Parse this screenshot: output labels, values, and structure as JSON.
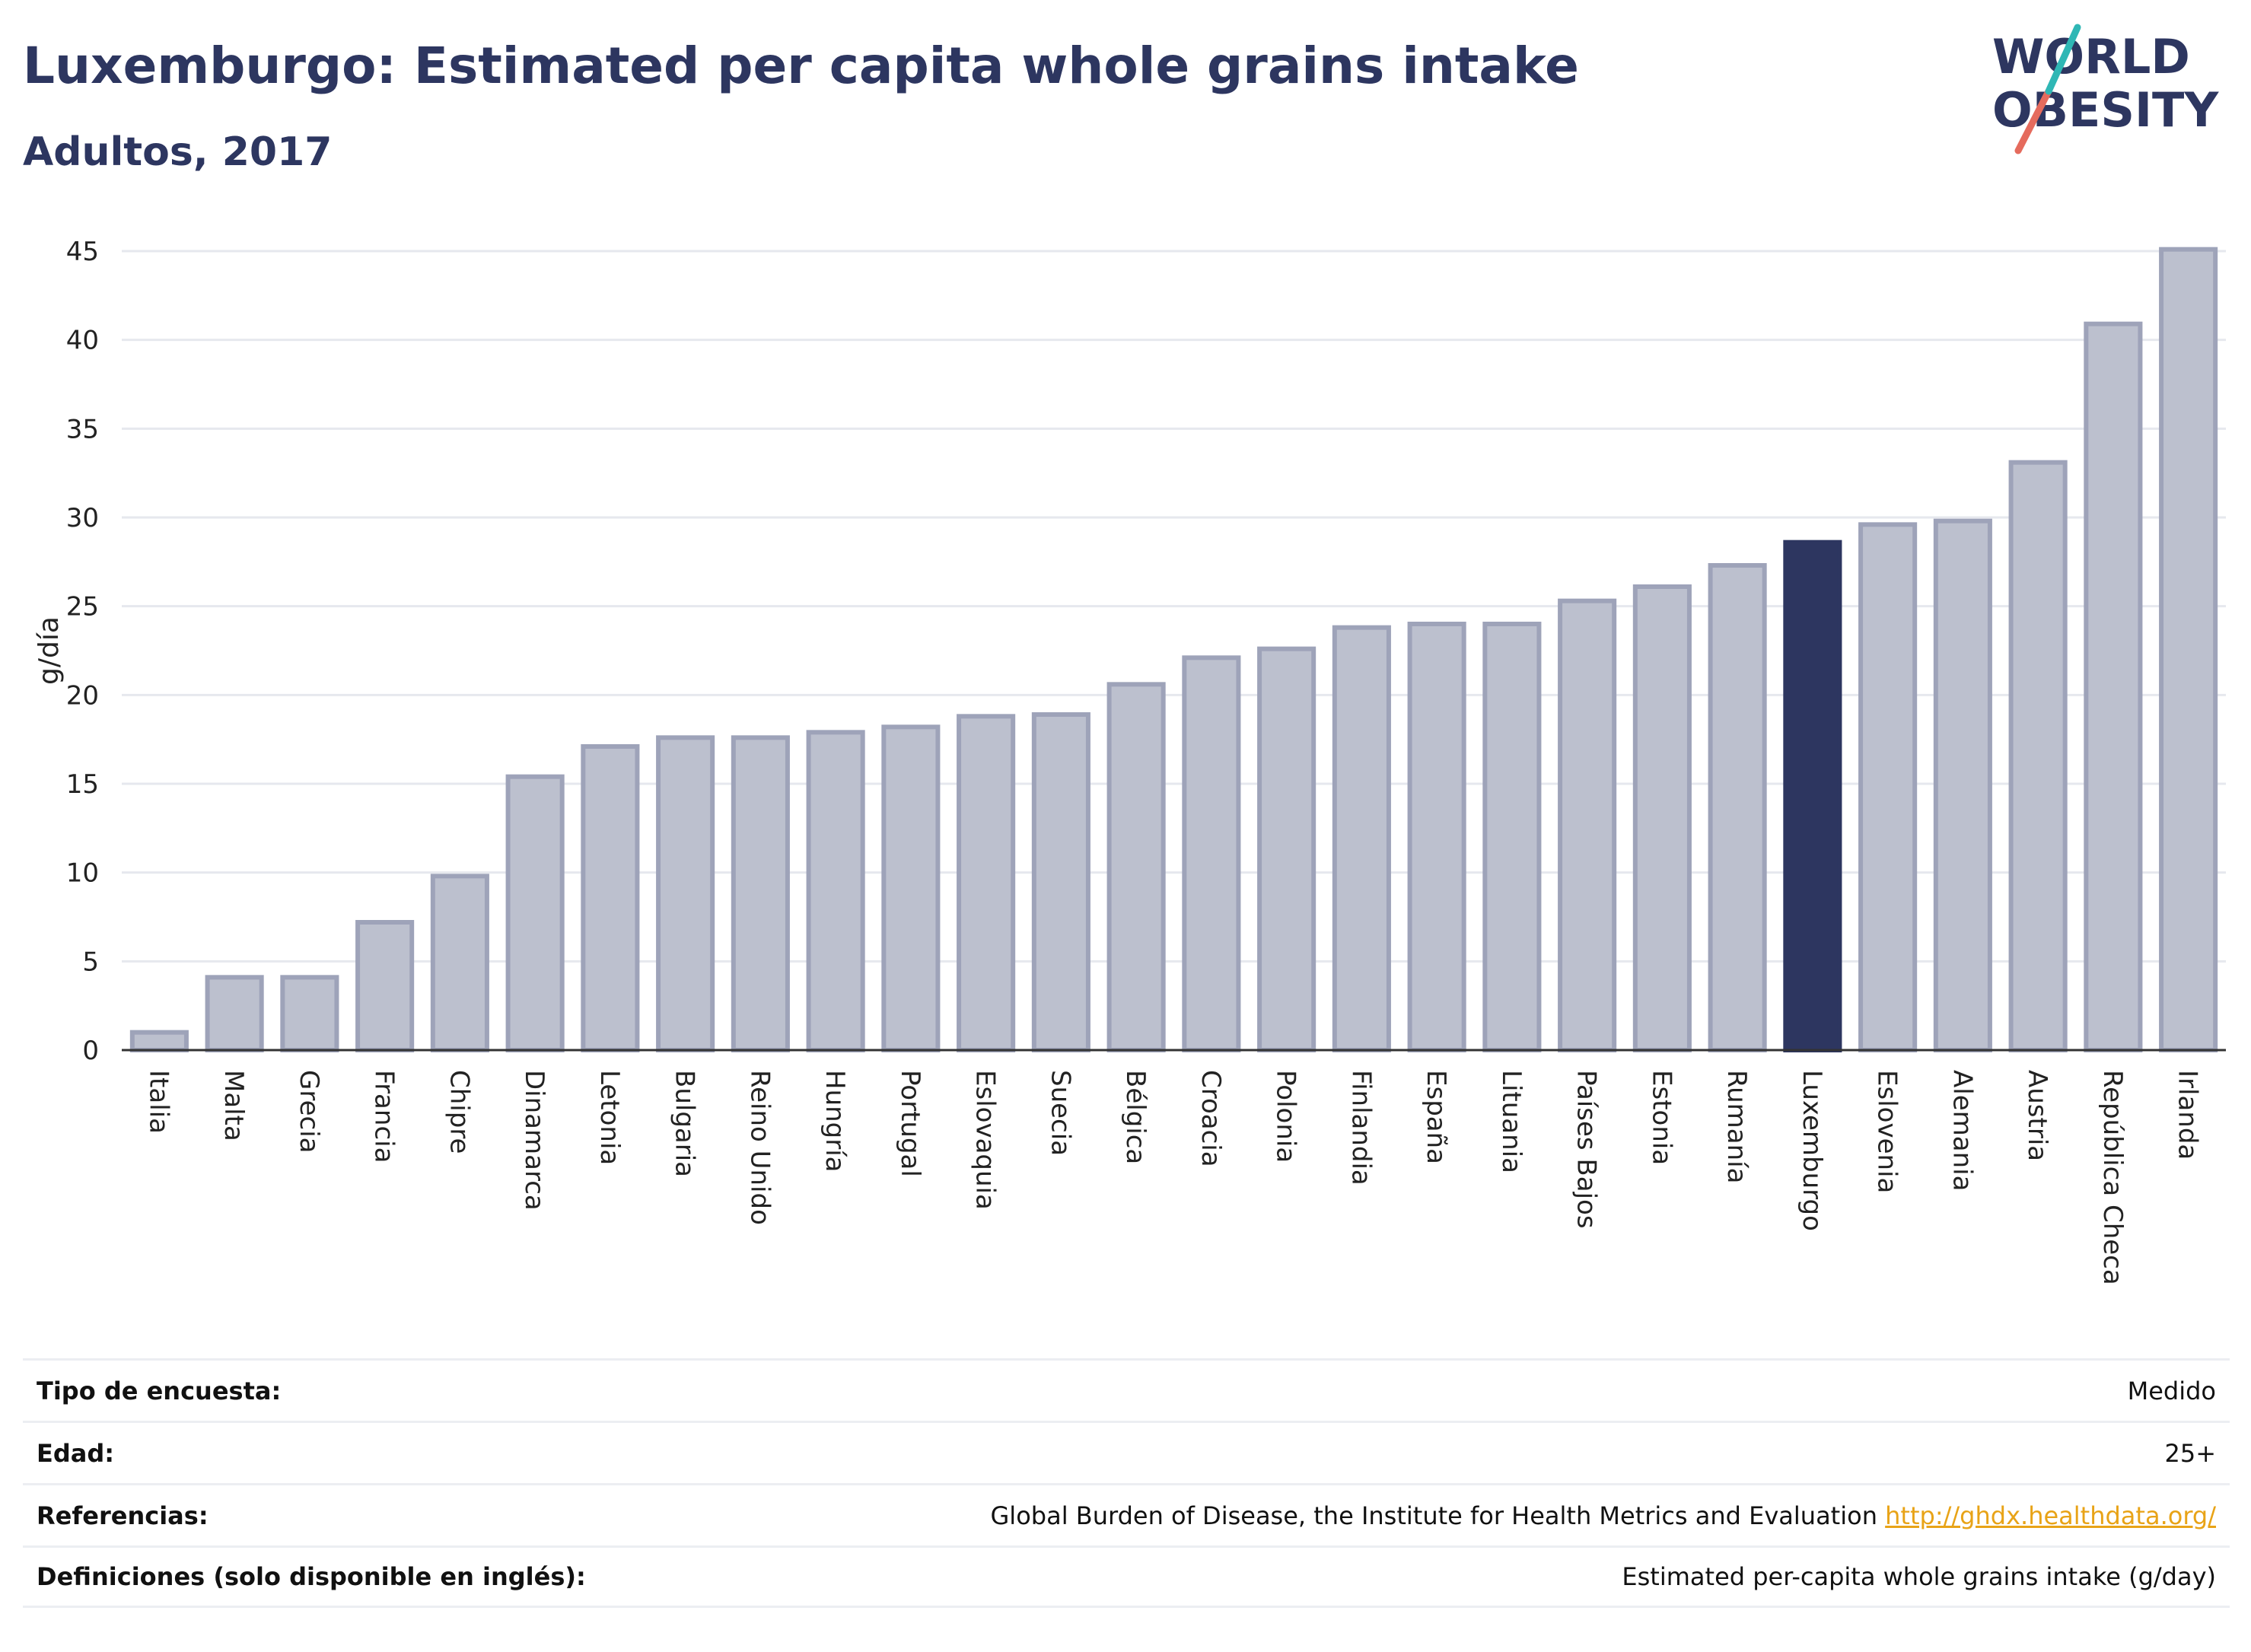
{
  "header": {
    "title": "Luxemburgo: Estimated per capita whole grains intake",
    "subtitle": "Adultos, 2017"
  },
  "logo": {
    "line1": "WORLD",
    "line2": "OBESITY"
  },
  "chart_data": {
    "type": "bar",
    "ylabel": "g/día",
    "ylim": [
      0,
      45
    ],
    "yticks": [
      0,
      5,
      10,
      15,
      20,
      25,
      30,
      35,
      40,
      45
    ],
    "grid": true,
    "highlight": "Luxemburgo",
    "colors": {
      "bar": "#bcc0ce",
      "bar_edge": "#9ea3b9",
      "highlight": "#2d3660"
    },
    "categories": [
      "Italia",
      "Malta",
      "Grecia",
      "Francia",
      "Chipre",
      "Dinamarca",
      "Letonia",
      "Bulgaria",
      "Reino Unido",
      "Hungría",
      "Portugal",
      "Eslovaquia",
      "Suecia",
      "Bélgica",
      "Croacia",
      "Polonia",
      "Finlandia",
      "España",
      "Lituania",
      "Países Bajos",
      "Estonia",
      "Rumanía",
      "Luxemburgo",
      "Eslovenia",
      "Alemania",
      "Austria",
      "República Checa",
      "Irlanda"
    ],
    "values": [
      1.0,
      4.1,
      4.1,
      7.2,
      9.8,
      15.4,
      17.1,
      17.6,
      17.6,
      17.9,
      18.2,
      18.8,
      18.9,
      20.6,
      22.1,
      22.6,
      23.8,
      24.0,
      24.0,
      25.3,
      26.1,
      27.3,
      28.6,
      29.6,
      29.8,
      33.1,
      40.9,
      45.1
    ]
  },
  "info": [
    {
      "key": "Tipo de encuesta:",
      "value": "Medido"
    },
    {
      "key": "Edad:",
      "value": "25+"
    },
    {
      "key": "Referencias:",
      "value": "Global Burden of Disease, the Institute for Health Metrics and Evaluation",
      "link": "http://ghdx.healthdata.org/"
    },
    {
      "key": "Definiciones (solo disponible en inglés):",
      "value": "Estimated per-capita whole grains intake (g/day)"
    }
  ]
}
